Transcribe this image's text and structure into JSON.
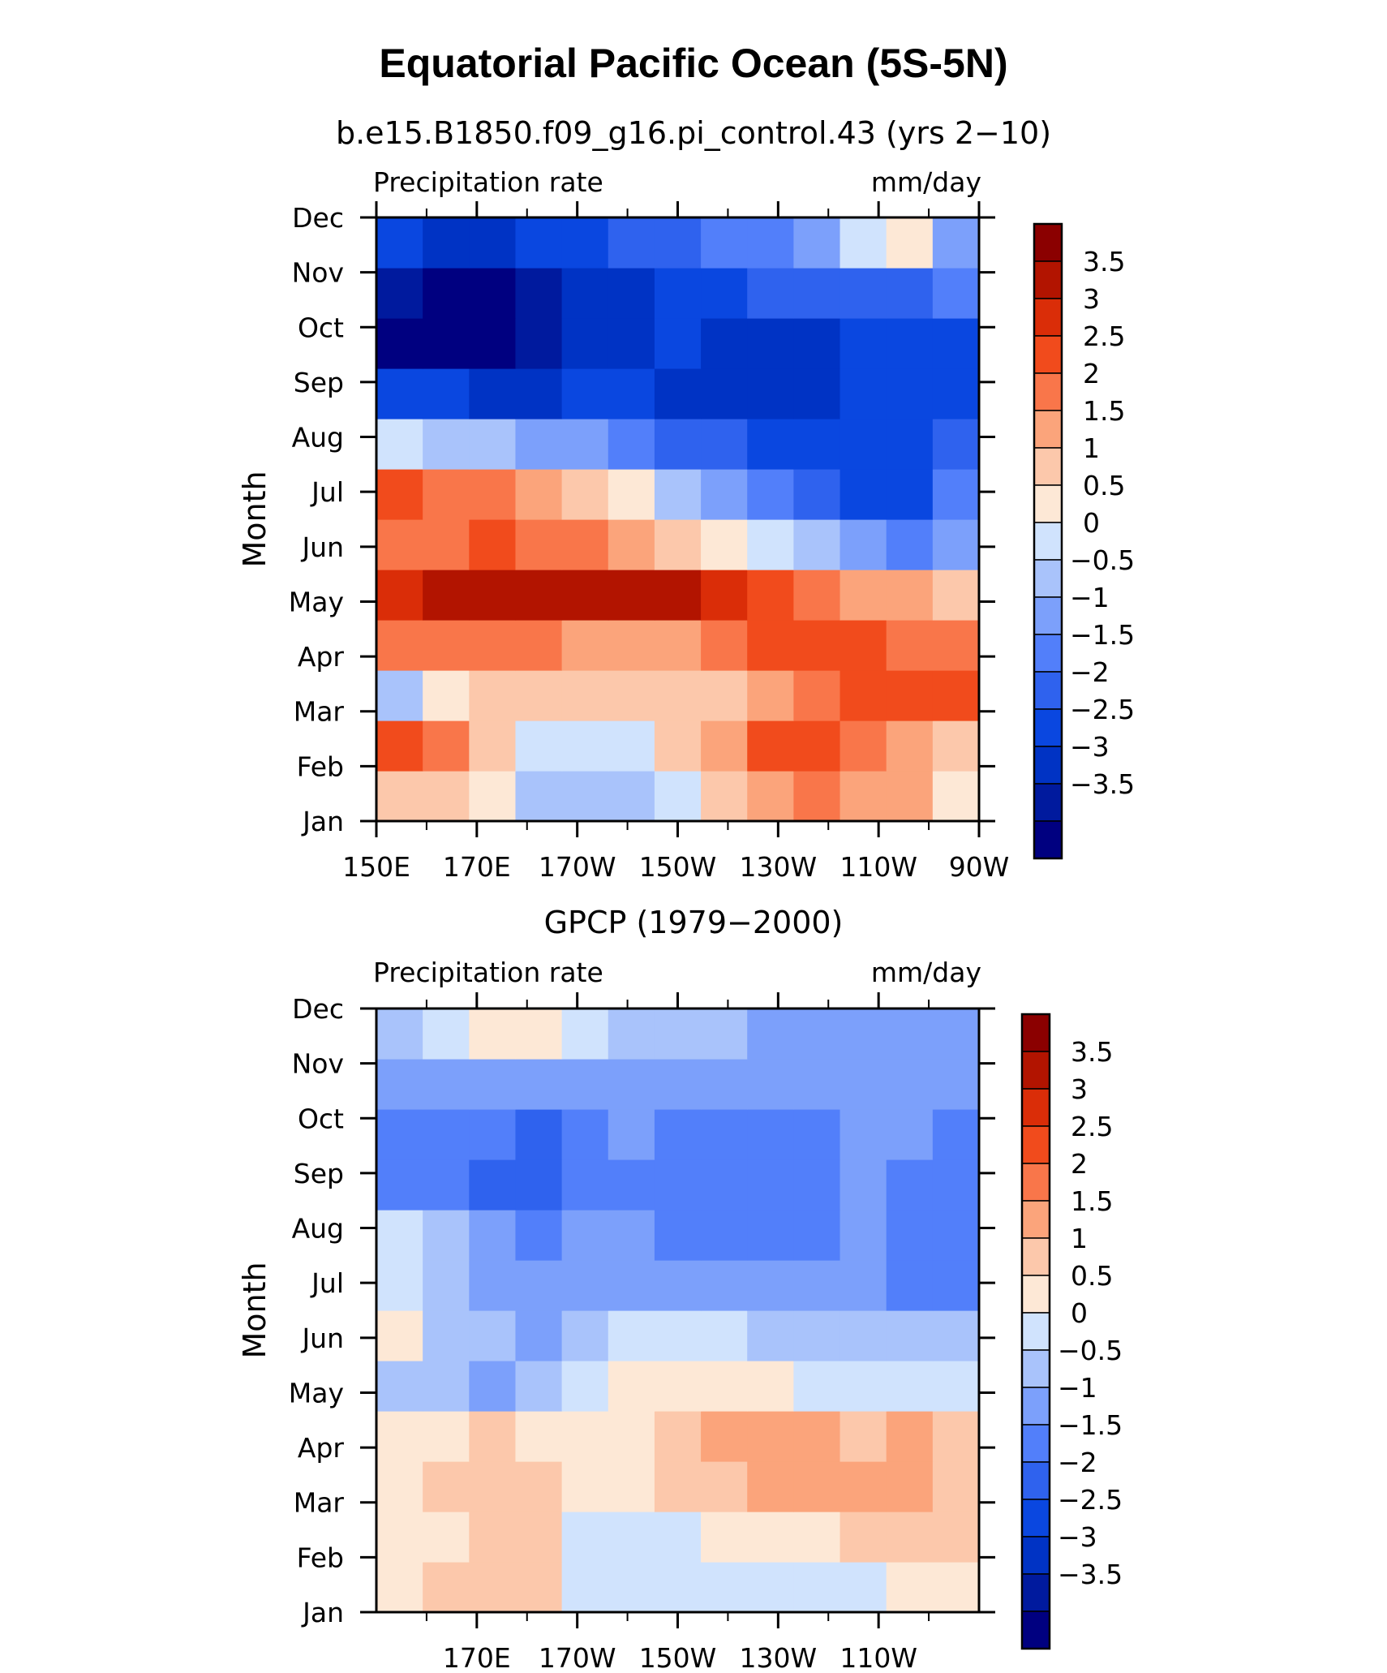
{
  "figure_title": "Equatorial Pacific Ocean (5S-5N)",
  "chart_data": [
    {
      "type": "heatmap",
      "title": "b.e15.B1850.f09_g16.pi_control.43 (yrs 2−10)",
      "left_label": "Precipitation rate",
      "right_label": "mm/day",
      "ylabel": "Month",
      "x_ticks": [
        "150E",
        "170E",
        "170W",
        "150W",
        "130W",
        "110W",
        "90W"
      ],
      "y_ticks": [
        "Jan",
        "Feb",
        "Mar",
        "Apr",
        "May",
        "Jun",
        "Jul",
        "Aug",
        "Sep",
        "Oct",
        "Nov",
        "Dec"
      ],
      "x_values": [
        150,
        160,
        170,
        180,
        190,
        200,
        210,
        220,
        230,
        240,
        250,
        260,
        270
      ],
      "values": [
        [
          1.5,
          1.3,
          0.6,
          -0.2,
          -0.4,
          -0.4,
          0.3,
          1.2,
          1.9,
          2.1,
          2.0,
          1.7,
          1.0
        ],
        [
          3.0,
          2.2,
          1.1,
          0.3,
          0.2,
          0.5,
          1.1,
          2.0,
          2.6,
          2.7,
          2.4,
          1.8,
          1.3
        ],
        [
          0.0,
          0.9,
          1.2,
          1.2,
          1.3,
          1.3,
          1.3,
          1.2,
          1.6,
          2.5,
          2.8,
          2.7,
          2.6
        ],
        [
          2.2,
          2.4,
          2.5,
          2.3,
          1.9,
          1.8,
          1.9,
          2.1,
          2.6,
          2.8,
          2.7,
          2.5,
          2.3
        ],
        [
          3.5,
          3.7,
          3.9,
          3.9,
          3.8,
          3.7,
          3.7,
          3.5,
          3.0,
          2.5,
          2.0,
          1.6,
          1.2
        ],
        [
          2.4,
          2.5,
          2.6,
          2.5,
          2.3,
          2.0,
          1.5,
          0.8,
          0.3,
          -0.3,
          -0.9,
          -1.2,
          -0.5
        ],
        [
          3.0,
          2.3,
          2.2,
          2.0,
          1.5,
          0.8,
          0.0,
          -0.6,
          -1.2,
          -1.8,
          -2.3,
          -2.0,
          -1.4
        ],
        [
          0.3,
          0.0,
          -0.2,
          -0.5,
          -0.8,
          -1.2,
          -1.6,
          -1.9,
          -2.1,
          -2.3,
          -2.3,
          -2.1,
          -1.9
        ],
        [
          -2.2,
          -2.4,
          -2.6,
          -2.5,
          -2.3,
          -2.2,
          -2.5,
          -2.7,
          -2.6,
          -2.5,
          -2.2,
          -2.2,
          -2.1
        ],
        [
          -3.7,
          -3.8,
          -3.5,
          -3.0,
          -2.9,
          -2.6,
          -2.4,
          -2.5,
          -2.6,
          -2.5,
          -2.3,
          -2.2,
          -2.3
        ],
        [
          -3.2,
          -3.5,
          -3.6,
          -3.1,
          -2.7,
          -2.5,
          -2.2,
          -2.0,
          -1.9,
          -1.7,
          -1.6,
          -1.5,
          -1.3
        ],
        [
          -2.4,
          -2.6,
          -2.5,
          -2.3,
          -2.1,
          -1.9,
          -1.6,
          -1.3,
          -1.0,
          -0.5,
          0.3,
          0.6,
          -0.6
        ]
      ]
    },
    {
      "type": "heatmap",
      "title": "GPCP (1979−2000)",
      "left_label": "Precipitation rate",
      "right_label": "mm/day",
      "ylabel": "Month",
      "x_ticks": [
        "170E",
        "170W",
        "150W",
        "130W",
        "110W"
      ],
      "y_ticks": [
        "Jan",
        "Feb",
        "Mar",
        "Apr",
        "May",
        "Jun",
        "Jul",
        "Aug",
        "Sep",
        "Oct",
        "Nov",
        "Dec"
      ],
      "x_values": [
        150,
        160,
        170,
        180,
        190,
        200,
        210,
        220,
        230,
        240,
        250,
        260,
        270
      ],
      "values": [
        [
          0.9,
          1.1,
          1.4,
          1.4,
          0.5,
          0.2,
          0.3,
          0.2,
          0.2,
          0.3,
          0.4,
          0.8,
          0.8
        ],
        [
          0.8,
          1.0,
          1.4,
          1.3,
          0.4,
          0.3,
          0.5,
          0.8,
          0.9,
          1.0,
          1.1,
          1.2,
          1.3
        ],
        [
          0.8,
          1.1,
          1.3,
          1.2,
          0.8,
          0.9,
          1.1,
          1.4,
          1.6,
          1.8,
          1.6,
          1.6,
          1.4
        ],
        [
          0.6,
          0.9,
          1.1,
          1.0,
          0.8,
          1.0,
          1.3,
          1.6,
          1.8,
          1.9,
          1.5,
          1.9,
          1.2
        ],
        [
          -0.2,
          -0.3,
          -0.5,
          -0.2,
          0.3,
          0.6,
          0.9,
          0.9,
          0.7,
          0.5,
          0.4,
          0.3,
          0.3
        ],
        [
          0.8,
          -0.2,
          -0.4,
          -0.6,
          -0.3,
          0.2,
          0.3,
          0.1,
          -0.1,
          -0.2,
          -0.2,
          -0.2,
          -0.1
        ],
        [
          0.5,
          -0.3,
          -0.6,
          -0.8,
          -0.7,
          -0.6,
          -0.5,
          -0.6,
          -0.6,
          -0.6,
          -0.7,
          -1.1,
          -1.2
        ],
        [
          0.2,
          -0.4,
          -0.8,
          -1.0,
          -0.9,
          -0.9,
          -1.1,
          -1.2,
          -1.2,
          -1.2,
          -0.9,
          -1.1,
          -1.0
        ],
        [
          -1.2,
          -1.3,
          -1.6,
          -1.8,
          -1.2,
          -1.2,
          -1.4,
          -1.4,
          -1.4,
          -1.3,
          -0.8,
          -1.0,
          -1.1
        ],
        [
          -1.1,
          -1.2,
          -1.4,
          -1.6,
          -1.2,
          -0.9,
          -1.0,
          -1.1,
          -1.1,
          -1.0,
          -0.7,
          -0.8,
          -1.1
        ],
        [
          -0.8,
          -0.8,
          -0.9,
          -0.9,
          -0.9,
          -0.8,
          -0.7,
          -0.6,
          -0.6,
          -0.6,
          -0.7,
          -0.7,
          -0.7
        ],
        [
          -0.1,
          0.4,
          0.9,
          0.7,
          0.3,
          -0.1,
          -0.4,
          -0.4,
          -0.5,
          -0.5,
          -0.5,
          -0.6,
          -0.6
        ]
      ]
    }
  ],
  "colorbar": {
    "labels": [
      "3.5",
      "3",
      "2.5",
      "2",
      "1.5",
      "1",
      "0.5",
      "0",
      "−0.5",
      "−1",
      "−1.5",
      "−2",
      "−2.5",
      "−3",
      "−3.5"
    ],
    "levels": [
      -3.5,
      -3,
      -2.5,
      -2,
      -1.5,
      -1,
      -0.5,
      0,
      0.5,
      1,
      1.5,
      2,
      2.5,
      3,
      3.5
    ],
    "colors": [
      "#000080",
      "#001a9e",
      "#0033c4",
      "#0a47e0",
      "#2f62ee",
      "#527ffa",
      "#7ca0fb",
      "#a9c3fb",
      "#d0e3fd",
      "#fde8d6",
      "#fcc8ab",
      "#fba47b",
      "#f9764a",
      "#f14b1c",
      "#da2d08",
      "#b21400",
      "#8b0000"
    ]
  }
}
